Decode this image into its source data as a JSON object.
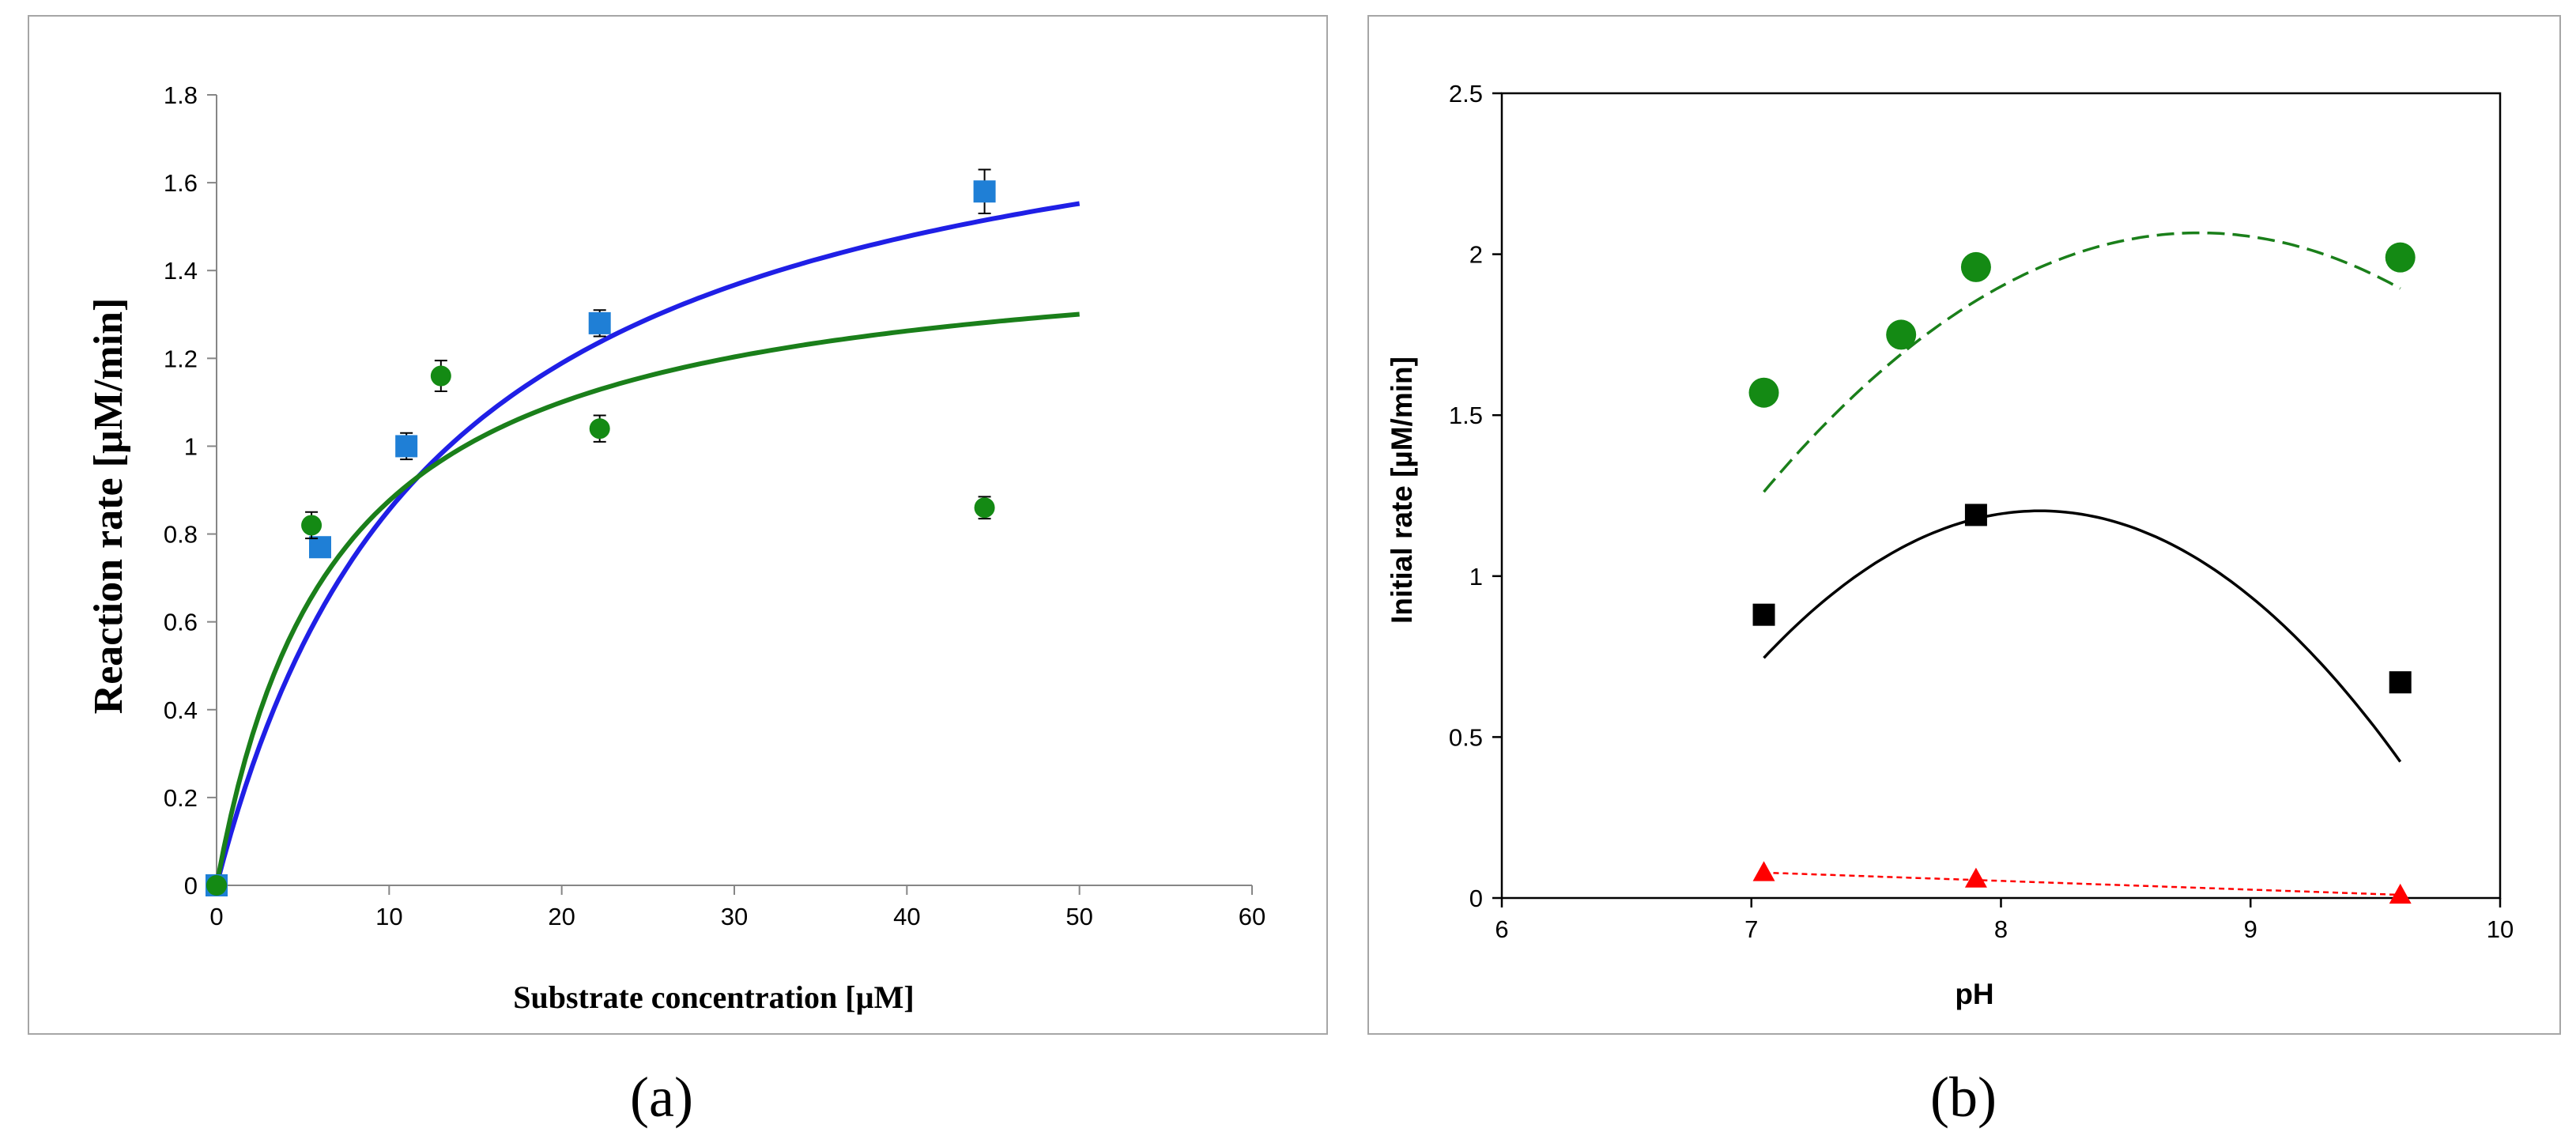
{
  "colors": {
    "blue_fit": "#1f1fe6",
    "green_fit": "#1a7f1a",
    "blue_marker": "#1f7fd6",
    "green_marker": "#148a14",
    "black": "#000000",
    "red": "#ff0000",
    "green_dashed": "#1a7f1a"
  },
  "panels": {
    "a": {
      "letter": "(a)"
    },
    "b": {
      "letter": "(b)"
    }
  },
  "chart_data": [
    {
      "id": "a",
      "type": "scatter",
      "title": "",
      "xlabel": "Substrate concentration [µM]",
      "ylabel": "Reaction rate [µM/min]",
      "xlim": [
        0,
        60
      ],
      "ylim": [
        0,
        1.8
      ],
      "xticks": [
        "0",
        "10",
        "20",
        "30",
        "40",
        "50",
        "60"
      ],
      "yticks": [
        "0",
        "0.2",
        "0.4",
        "0.6",
        "0.8",
        "1",
        "1.2",
        "1.4",
        "1.6",
        "1.8"
      ],
      "grid": false,
      "series": [
        {
          "name": "blue data",
          "marker": "square",
          "color": "#1f7fd6",
          "x": [
            0,
            6,
            11,
            22.2,
            44.5
          ],
          "y": [
            0,
            0.77,
            1.0,
            1.28,
            1.58
          ],
          "err": [
            0,
            0,
            0.03,
            0.03,
            0.05
          ]
        },
        {
          "name": "green data",
          "marker": "circle",
          "color": "#148a14",
          "x": [
            0,
            5.5,
            13,
            22.2,
            44.5
          ],
          "y": [
            0,
            0.82,
            1.16,
            1.04,
            0.86
          ],
          "err": [
            0,
            0.03,
            0.035,
            0.03,
            0.025
          ]
        },
        {
          "name": "blue fit",
          "line": "solid",
          "color": "#1f1fe6",
          "model": "michaelis-menten",
          "vmax": 1.95,
          "km": 12.8,
          "x_range": [
            0,
            50
          ]
        },
        {
          "name": "green fit",
          "line": "solid",
          "color": "#1a7f1a",
          "model": "michaelis-menten",
          "vmax": 1.48,
          "km": 6.9,
          "x_range": [
            0,
            50
          ]
        }
      ]
    },
    {
      "id": "b",
      "type": "scatter",
      "title": "",
      "xlabel": "pH",
      "ylabel": "Initial rate [µM/min]",
      "xlim": [
        6,
        10
      ],
      "ylim": [
        0,
        2.5
      ],
      "xticks": [
        "6",
        "7",
        "8",
        "9",
        "10"
      ],
      "yticks": [
        "0",
        "0.5",
        "1",
        "1.5",
        "2",
        "2.5"
      ],
      "grid": false,
      "series": [
        {
          "name": "green circles",
          "marker": "circle",
          "color": "#148a14",
          "x": [
            7.05,
            7.6,
            7.9,
            9.6
          ],
          "y": [
            1.57,
            1.75,
            1.96,
            1.99
          ]
        },
        {
          "name": "black squares",
          "marker": "square",
          "color": "#000000",
          "x": [
            7.05,
            7.9,
            9.6
          ],
          "y": [
            0.88,
            1.19,
            0.67
          ]
        },
        {
          "name": "red triangles",
          "marker": "triangle",
          "color": "#ff0000",
          "x": [
            7.05,
            7.9,
            9.6
          ],
          "y": [
            0.08,
            0.06,
            0.01
          ]
        },
        {
          "name": "green trend",
          "line": "dashed",
          "color": "#1a7f1a",
          "model": "polynomial",
          "coef": [
            -0.265,
            4.66,
            -18.42
          ],
          "x_range": [
            7.05,
            9.6
          ]
        },
        {
          "name": "black trend",
          "line": "solid",
          "color": "#000000",
          "model": "polynomial",
          "coef": [
            -0.3736,
            6.094,
            -23.648
          ],
          "x_range": [
            7.05,
            9.6
          ]
        },
        {
          "name": "red trend",
          "line": "dotted",
          "color": "#ff0000",
          "model": "polynomial",
          "coef": [
            -0.0271,
            0.2699
          ],
          "x_range": [
            7.05,
            9.6
          ]
        }
      ]
    }
  ]
}
